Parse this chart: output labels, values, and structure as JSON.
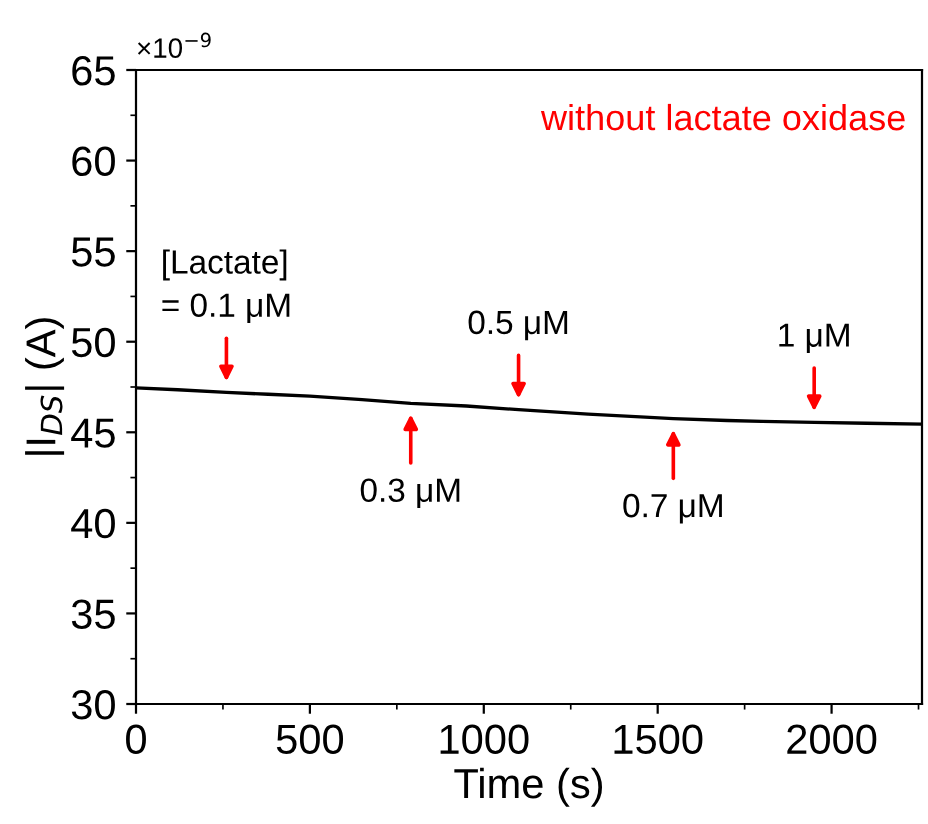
{
  "chart_data": {
    "type": "line",
    "xlabel": "Time (s)",
    "ylabel": "|I$_{DS}$| (A)",
    "x": [
      0,
      120,
      260,
      380,
      500,
      650,
      790,
      950,
      1100,
      1300,
      1450,
      1545,
      1700,
      1800,
      1950,
      2100,
      2260
    ],
    "series": [
      {
        "color": "#000000",
        "values": [
          47.45,
          47.35,
          47.2,
          47.1,
          47.0,
          46.8,
          46.6,
          46.45,
          46.25,
          46.0,
          45.85,
          45.75,
          45.65,
          45.6,
          45.55,
          45.5,
          45.45
        ]
      }
    ],
    "xlim": [
      0,
      2260
    ],
    "ylim": [
      30,
      65
    ],
    "xticks": [
      0,
      500,
      1000,
      1500,
      2000
    ],
    "yticks": [
      30,
      35,
      40,
      45,
      50,
      55,
      60,
      65
    ],
    "grid": false,
    "legend": false,
    "line_style": "solid",
    "marker": "none",
    "annotations": [
      "×10$^{−9}$",
      "without lactate oxidase",
      {
        "text": "[Lactate]\n= 0.1 μM",
        "x": 260,
        "y": 47.2
      },
      {
        "text": "0.3 μM",
        "x": 790,
        "y": 46.6
      },
      {
        "text": "0.5 μM",
        "x": 1100,
        "y": 46.25
      },
      {
        "text": "0.7 μM",
        "x": 1545,
        "y": 45.75
      },
      {
        "text": "1 μM",
        "x": 1950,
        "y": 45.55
      }
    ]
  }
}
